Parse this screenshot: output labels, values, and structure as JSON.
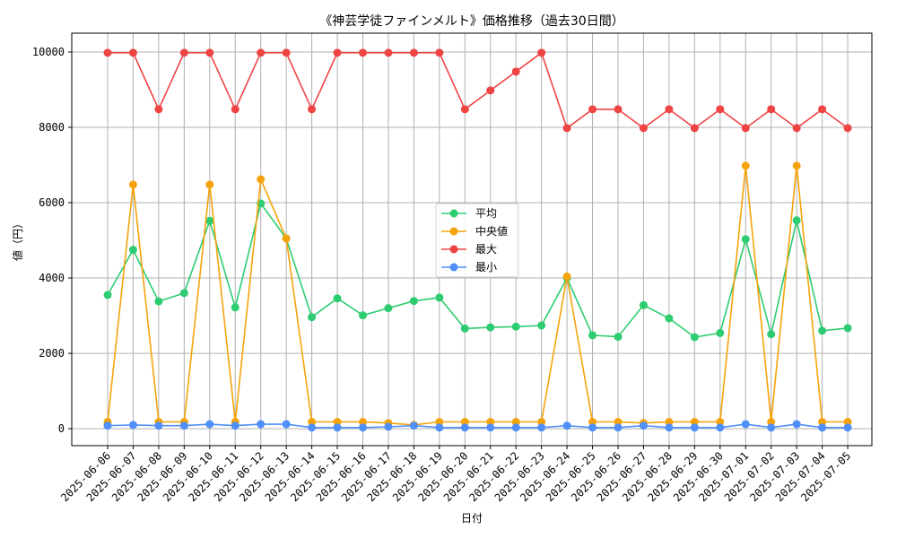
{
  "chart_data": {
    "type": "line",
    "title": "《神芸学徒ファインメルト》価格推移（過去30日間）",
    "xlabel": "日付",
    "ylabel": "値（円）",
    "ylim": [
      -450,
      10500
    ],
    "yticks": [
      0,
      2000,
      4000,
      6000,
      8000,
      10000
    ],
    "grid": true,
    "legend_position": "center",
    "x": [
      "2025-06-06",
      "2025-06-07",
      "2025-06-08",
      "2025-06-09",
      "2025-06-10",
      "2025-06-11",
      "2025-06-12",
      "2025-06-13",
      "2025-06-14",
      "2025-06-15",
      "2025-06-16",
      "2025-06-17",
      "2025-06-18",
      "2025-06-19",
      "2025-06-20",
      "2025-06-21",
      "2025-06-22",
      "2025-06-23",
      "2025-06-24",
      "2025-06-25",
      "2025-06-26",
      "2025-06-27",
      "2025-06-28",
      "2025-06-29",
      "2025-06-30",
      "2025-07-01",
      "2025-07-02",
      "2025-07-03",
      "2025-07-04",
      "2025-07-05"
    ],
    "series": [
      {
        "name": "平均",
        "color": "#2ecc71",
        "values": [
          3550,
          4750,
          3380,
          3600,
          5520,
          3220,
          5980,
          5050,
          2960,
          3460,
          3010,
          3200,
          3390,
          3480,
          2660,
          2690,
          2710,
          2740,
          4000,
          2480,
          2440,
          3280,
          2930,
          2430,
          2540,
          5030,
          2510,
          5530,
          2600,
          2670
        ]
      },
      {
        "name": "中央値",
        "color": "#f5a30b",
        "values": [
          180,
          6480,
          180,
          180,
          6480,
          180,
          6620,
          5050,
          180,
          180,
          180,
          150,
          100,
          180,
          180,
          180,
          180,
          180,
          4040,
          180,
          180,
          150,
          180,
          180,
          180,
          6980,
          180,
          6980,
          180,
          180
        ]
      },
      {
        "name": "最大",
        "color": "#ef4444",
        "values": [
          9980,
          9980,
          8480,
          9980,
          9980,
          8480,
          9980,
          9980,
          8480,
          9980,
          9980,
          9980,
          9980,
          9980,
          8480,
          8980,
          9480,
          9980,
          7980,
          8480,
          8480,
          7980,
          8480,
          7980,
          8480,
          7980,
          8480,
          7980,
          8480,
          7980
        ]
      },
      {
        "name": "最小",
        "color": "#4f8ff7",
        "values": [
          80,
          100,
          80,
          80,
          120,
          80,
          120,
          120,
          30,
          30,
          30,
          50,
          80,
          30,
          30,
          30,
          30,
          30,
          80,
          30,
          30,
          80,
          30,
          30,
          30,
          120,
          30,
          120,
          30,
          30
        ]
      }
    ]
  }
}
